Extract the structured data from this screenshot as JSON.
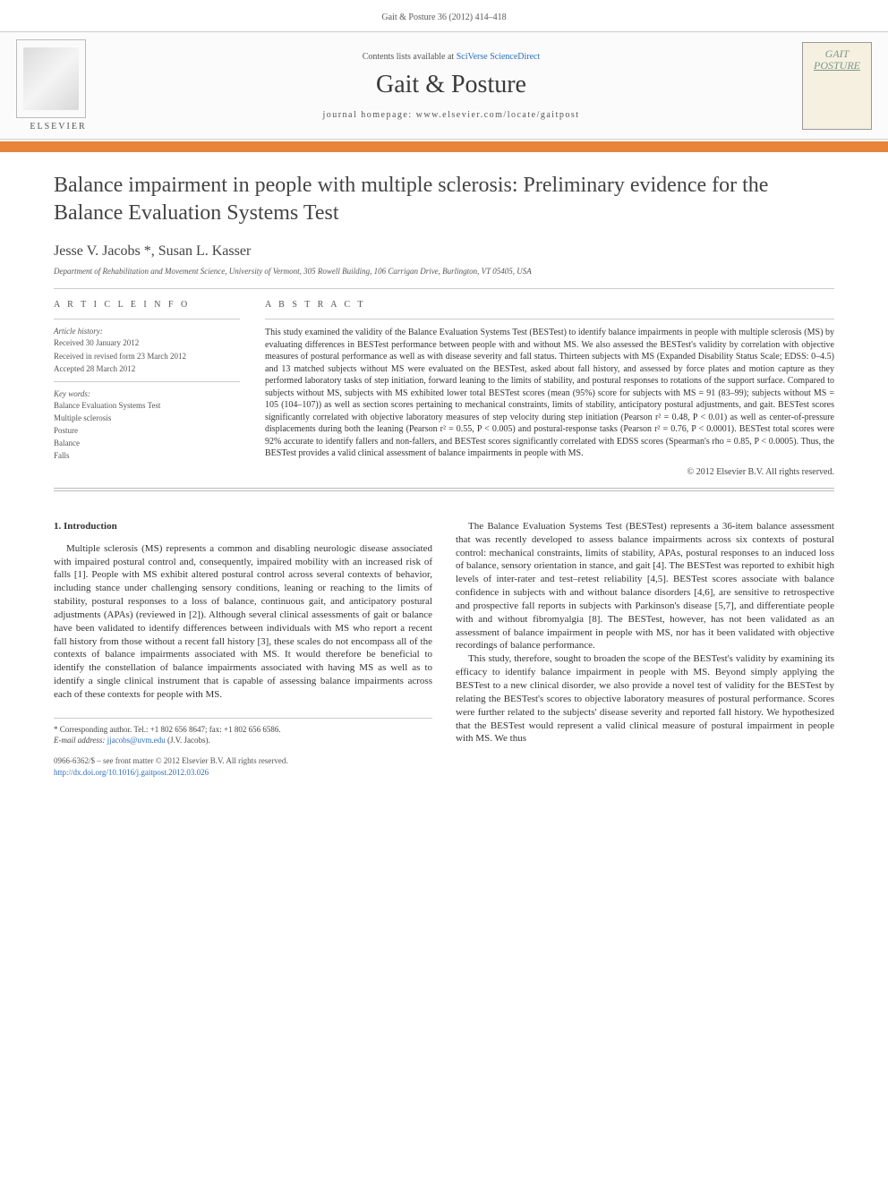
{
  "citation": "Gait & Posture 36 (2012) 414–418",
  "banner": {
    "contents_prefix": "Contents lists available at ",
    "contents_link": "SciVerse ScienceDirect",
    "journal_name": "Gait & Posture",
    "homepage_prefix": "journal homepage: ",
    "homepage_url": "www.elsevier.com/locate/gaitpost",
    "publisher_label": "ELSEVIER",
    "cover_title_line1": "GAIT",
    "cover_title_line2": "POSTURE"
  },
  "article": {
    "title": "Balance impairment in people with multiple sclerosis: Preliminary evidence for the Balance Evaluation Systems Test",
    "authors": "Jesse V. Jacobs *, Susan L. Kasser",
    "affiliation": "Department of Rehabilitation and Movement Science, University of Vermont, 305 Rowell Building, 106 Carrigan Drive, Burlington, VT 05405, USA"
  },
  "info": {
    "heading": "A R T I C L E   I N F O",
    "history_label": "Article history:",
    "received": "Received 30 January 2012",
    "received_revised": "Received in revised form 23 March 2012",
    "accepted": "Accepted 28 March 2012",
    "keywords_label": "Key words:",
    "keywords": [
      "Balance Evaluation Systems Test",
      "Multiple sclerosis",
      "Posture",
      "Balance",
      "Falls"
    ]
  },
  "abstract": {
    "heading": "A B S T R A C T",
    "text": "This study examined the validity of the Balance Evaluation Systems Test (BESTest) to identify balance impairments in people with multiple sclerosis (MS) by evaluating differences in BESTest performance between people with and without MS. We also assessed the BESTest's validity by correlation with objective measures of postural performance as well as with disease severity and fall status. Thirteen subjects with MS (Expanded Disability Status Scale; EDSS: 0–4.5) and 13 matched subjects without MS were evaluated on the BESTest, asked about fall history, and assessed by force plates and motion capture as they performed laboratory tasks of step initiation, forward leaning to the limits of stability, and postural responses to rotations of the support surface. Compared to subjects without MS, subjects with MS exhibited lower total BESTest scores (mean (95%) score for subjects with MS = 91 (83–99); subjects without MS = 105 (104–107)) as well as section scores pertaining to mechanical constraints, limits of stability, anticipatory postural adjustments, and gait. BESTest scores significantly correlated with objective laboratory measures of step velocity during step initiation (Pearson r² = 0.48, P < 0.01) as well as center-of-pressure displacements during both the leaning (Pearson r² = 0.55, P < 0.005) and postural-response tasks (Pearson r² = 0.76, P < 0.0001). BESTest total scores were 92% accurate to identify fallers and non-fallers, and BESTest scores significantly correlated with EDSS scores (Spearman's rho = 0.85, P < 0.0005). Thus, the BESTest provides a valid clinical assessment of balance impairments in people with MS.",
    "copyright": "© 2012 Elsevier B.V. All rights reserved."
  },
  "body": {
    "section_heading": "1. Introduction",
    "col1_p1": "Multiple sclerosis (MS) represents a common and disabling neurologic disease associated with impaired postural control and, consequently, impaired mobility with an increased risk of falls [1]. People with MS exhibit altered postural control across several contexts of behavior, including stance under challenging sensory conditions, leaning or reaching to the limits of stability, postural responses to a loss of balance, continuous gait, and anticipatory postural adjustments (APAs) (reviewed in [2]). Although several clinical assessments of gait or balance have been validated to identify differences between individuals with MS who report a recent fall history from those without a recent fall history [3], these scales do not encompass all of the contexts of balance impairments associated with MS. It would therefore be beneficial to identify the constellation of balance impairments associated with having MS as well as to identify a single clinical instrument that is capable of assessing balance impairments across each of these contexts for people with MS.",
    "col2_p1": "The Balance Evaluation Systems Test (BESTest) represents a 36-item balance assessment that was recently developed to assess balance impairments across six contexts of postural control: mechanical constraints, limits of stability, APAs, postural responses to an induced loss of balance, sensory orientation in stance, and gait [4]. The BESTest was reported to exhibit high levels of inter-rater and test–retest reliability [4,5]. BESTest scores associate with balance confidence in subjects with and without balance disorders [4,6], are sensitive to retrospective and prospective fall reports in subjects with Parkinson's disease [5,7], and differentiate people with and without fibromyalgia [8]. The BESTest, however, has not been validated as an assessment of balance impairment in people with MS, nor has it been validated with objective recordings of balance performance.",
    "col2_p2": "This study, therefore, sought to broaden the scope of the BESTest's validity by examining its efficacy to identify balance impairment in people with MS. Beyond simply applying the BESTest to a new clinical disorder, we also provide a novel test of validity for the BESTest by relating the BESTest's scores to objective laboratory measures of postural performance. Scores were further related to the subjects' disease severity and reported fall history. We hypothesized that the BESTest would represent a valid clinical measure of postural impairment in people with MS. We thus"
  },
  "corr": {
    "line1": "* Corresponding author. Tel.: +1 802 656 8647; fax: +1 802 656 6586.",
    "email_label": "E-mail address: ",
    "email": "jjacobs@uvm.edu",
    "email_suffix": " (J.V. Jacobs)."
  },
  "footer": {
    "line1": "0966-6362/$ – see front matter © 2012 Elsevier B.V. All rights reserved.",
    "doi": "http://dx.doi.org/10.1016/j.gaitpost.2012.03.026"
  },
  "colors": {
    "orange_bar": "#e8833a",
    "link": "#2a6fbb",
    "text": "#333333",
    "muted": "#555555",
    "rule": "#cccccc"
  },
  "typography": {
    "title_fontsize": 24,
    "journal_name_fontsize": 28,
    "authors_fontsize": 16,
    "body_fontsize": 11,
    "abstract_fontsize": 10,
    "small_fontsize": 9
  }
}
